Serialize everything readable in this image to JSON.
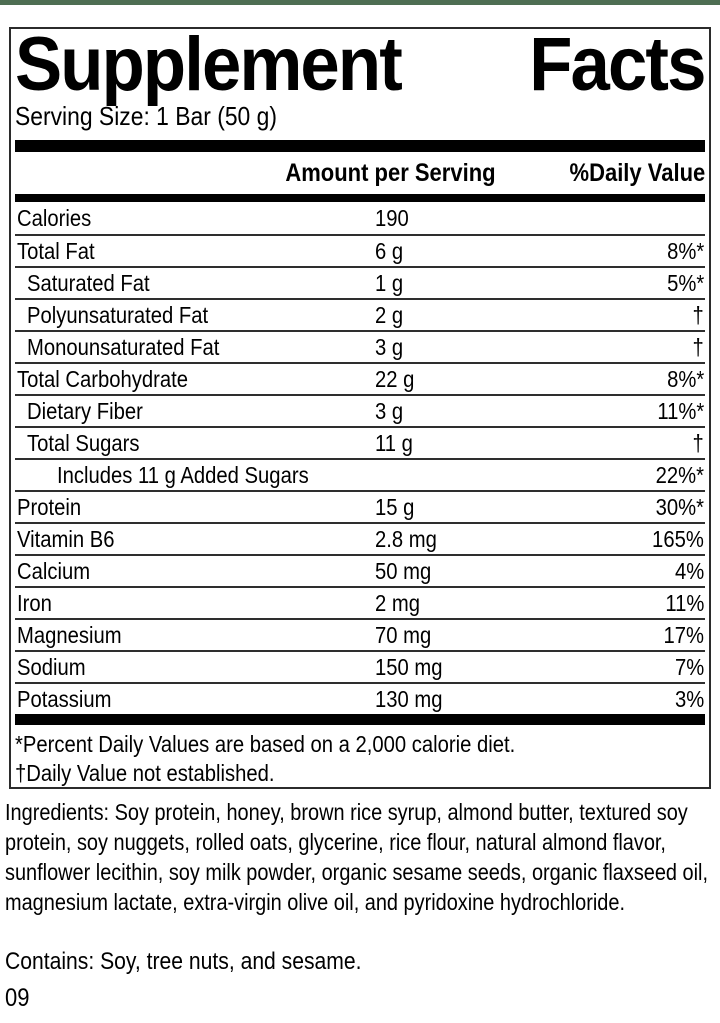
{
  "accent_color": "#4e6e53",
  "label": {
    "title_word1": "Supplement",
    "title_word2": "Facts",
    "serving_size": "Serving Size: 1 Bar (50 g)",
    "header": {
      "amount": "Amount per Serving",
      "dv": "%Daily Value"
    },
    "rows": [
      {
        "name": "Calories",
        "amount": "190",
        "dv": "",
        "indent": 0
      },
      {
        "name": "Total Fat",
        "amount": "6 g",
        "dv": "8%*",
        "indent": 0
      },
      {
        "name": "Saturated Fat",
        "amount": "1 g",
        "dv": "5%*",
        "indent": 1
      },
      {
        "name": "Polyunsaturated Fat",
        "amount": "2 g",
        "dv": "†",
        "indent": 1
      },
      {
        "name": "Monounsaturated Fat",
        "amount": "3 g",
        "dv": "†",
        "indent": 1
      },
      {
        "name": "Total Carbohydrate",
        "amount": "22 g",
        "dv": "8%*",
        "indent": 0
      },
      {
        "name": "Dietary Fiber",
        "amount": "3 g",
        "dv": "11%*",
        "indent": 1
      },
      {
        "name": "Total Sugars",
        "amount": "11 g",
        "dv": "†",
        "indent": 1
      },
      {
        "name": "Includes 11 g Added Sugars",
        "amount": "",
        "dv": "22%*",
        "indent": 2
      },
      {
        "name": "Protein",
        "amount": "15 g",
        "dv": "30%*",
        "indent": 0
      },
      {
        "name": "Vitamin B6",
        "amount": "2.8 mg",
        "dv": "165%",
        "indent": 0
      },
      {
        "name": "Calcium",
        "amount": "50 mg",
        "dv": "4%",
        "indent": 0
      },
      {
        "name": "Iron",
        "amount": "2 mg",
        "dv": "11%",
        "indent": 0
      },
      {
        "name": "Magnesium",
        "amount": "70 mg",
        "dv": "17%",
        "indent": 0
      },
      {
        "name": "Sodium",
        "amount": "150 mg",
        "dv": "7%",
        "indent": 0
      },
      {
        "name": "Potassium",
        "amount": "130 mg",
        "dv": "3%",
        "indent": 0
      }
    ],
    "footnotes": [
      "*Percent Daily Values are based on a 2,000 calorie diet.",
      "†Daily Value not established."
    ]
  },
  "ingredients": "Ingredients: Soy protein, honey, brown rice syrup, almond butter, textured soy protein, soy nuggets, rolled oats, glycerine, rice flour, natural almond flavor, sunflower lecithin, soy milk powder, organic sesame seeds, organic flaxseed oil, magnesium lactate, extra-virgin olive oil, and pyridoxine hydrochloride.",
  "contains": "Contains: Soy, tree nuts, and sesame.",
  "product_code": "09"
}
